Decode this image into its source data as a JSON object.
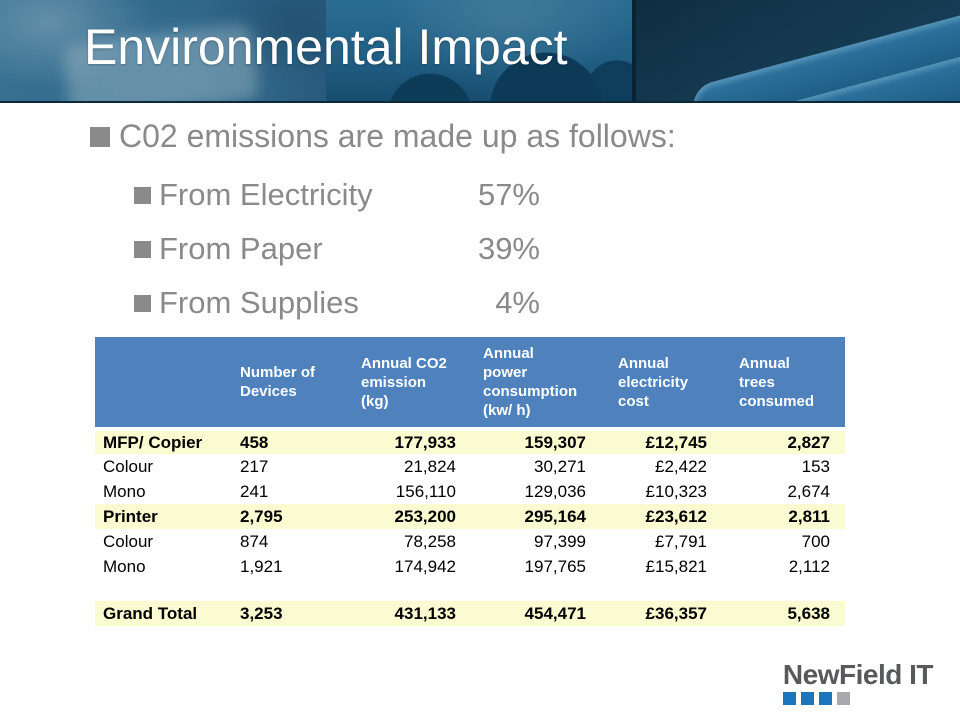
{
  "slide": {
    "title": "Environmental Impact"
  },
  "bullets": {
    "main": "C02 emissions are made up as follows:",
    "items": [
      {
        "label": "From Electricity",
        "value": "57%"
      },
      {
        "label": "From Paper",
        "value": "39%"
      },
      {
        "label": "From Supplies",
        "value": "4%"
      }
    ]
  },
  "table": {
    "headers": [
      "",
      "Number of Devices",
      "Annual CO2 emission (kg)",
      "Annual power consumption (kw/ h)",
      "Annual electricity cost",
      "Annual trees consumed"
    ],
    "rows": [
      {
        "label": "MFP/ Copier",
        "style": "subtotal",
        "values": [
          "458",
          "177,933",
          "159,307",
          "£12,745",
          "2,827"
        ]
      },
      {
        "label": "Colour",
        "style": "normal",
        "values": [
          "217",
          "21,824",
          "30,271",
          "£2,422",
          "153"
        ]
      },
      {
        "label": "Mono",
        "style": "normal",
        "values": [
          "241",
          "156,110",
          "129,036",
          "£10,323",
          "2,674"
        ]
      },
      {
        "label": "Printer",
        "style": "subtotal",
        "values": [
          "2,795",
          "253,200",
          "295,164",
          "£23,612",
          "2,811"
        ]
      },
      {
        "label": "Colour",
        "style": "normal",
        "values": [
          "874",
          "78,258",
          "97,399",
          "£7,791",
          "700"
        ]
      },
      {
        "label": "Mono",
        "style": "normal",
        "values": [
          "1,921",
          "174,942",
          "197,765",
          "£15,821",
          "2,112"
        ]
      },
      {
        "label": "",
        "style": "spacer",
        "values": [
          "",
          "",
          "",
          "",
          ""
        ]
      },
      {
        "label": "Grand Total",
        "style": "total",
        "values": [
          "3,253",
          "431,133",
          "454,471",
          "£36,357",
          "5,638"
        ]
      }
    ]
  },
  "logo": {
    "text": "NewField IT",
    "squares": [
      "#1a75bc",
      "#1a75bc",
      "#1a75bc",
      "#a7a9ac"
    ]
  },
  "colors": {
    "header_blue": "#4f81bd",
    "row_cream": "#fbfbd2",
    "bullet_gray": "#8a8a8a",
    "logo_text_gray": "#58595b"
  }
}
